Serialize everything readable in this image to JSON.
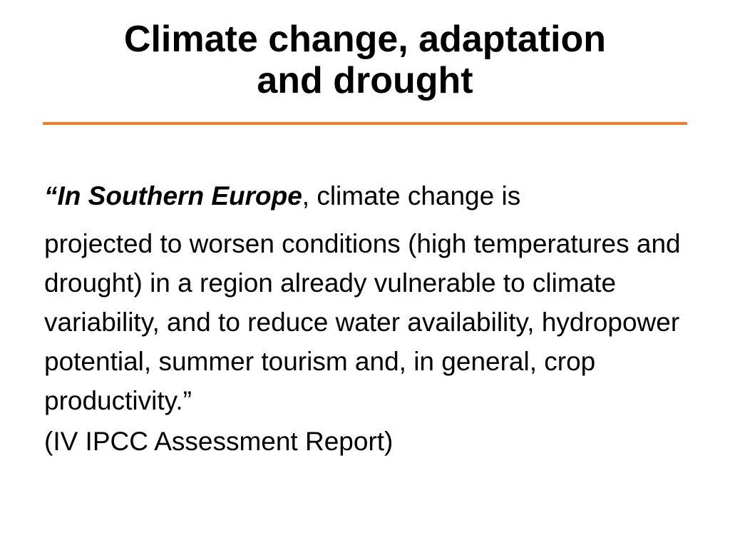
{
  "slide": {
    "title_line_1": "Climate change, adaptation",
    "title_line_2": "and drought",
    "accent_color": "#f07d29",
    "lead_emphasis": "“In Southern Europe",
    "lead_rest": ", climate change is",
    "quote_body": "projected to worsen conditions (high temperatures and drought) in a region already vulnerable to climate variability, and to reduce water availability, hydropower potential, summer tourism and, in general, crop productivity.”",
    "citation": "(IV IPCC Assessment Report)"
  }
}
